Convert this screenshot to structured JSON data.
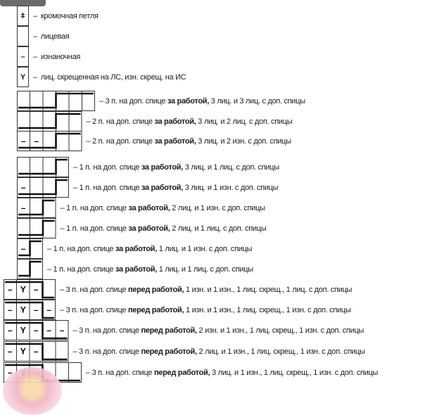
{
  "legend": [
    {
      "symbol": "ǂ",
      "dash": "–",
      "label": "кромочная петля"
    },
    {
      "symbol": "",
      "dash": "–",
      "label": "лицевая"
    },
    {
      "symbol": "–",
      "dash": "–",
      "label": "изнаночная"
    },
    {
      "symbol": "Y",
      "dash": "–",
      "label": "лиц. скрещенная на ЛС, изн. скрещ. на ИС"
    }
  ],
  "cables": [
    {
      "cells": [
        "",
        "",
        "",
        "",
        "",
        ""
      ],
      "held": 3,
      "side": "behind",
      "pre": "– 3 п. на доп. спице",
      "bold": "за работой,",
      "post": "3 лиц. и 3 лиц. с доп. спицы"
    },
    {
      "cells": [
        "",
        "",
        "",
        "",
        ""
      ],
      "held": 2,
      "side": "behind",
      "pre": "– 2 п. на доп. спице",
      "bold": "за работой,",
      "post": "3 лиц. и 2 лиц. с доп. спицы"
    },
    {
      "cells": [
        "–",
        "–",
        "",
        "",
        ""
      ],
      "held": 2,
      "side": "behind",
      "pre": "– 2 п. на доп. спице",
      "bold": "за работой,",
      "post": "3 лиц. и 2 изн. с доп. спицы"
    },
    {
      "cells": [
        "",
        "",
        "",
        ""
      ],
      "held": 1,
      "side": "behind",
      "pre": "– 1 п. на доп. спице",
      "bold": "за работой,",
      "post": "3 лиц. и 1 лиц. с доп. спицы"
    },
    {
      "cells": [
        "–",
        "",
        "",
        ""
      ],
      "held": 1,
      "side": "behind",
      "pre": "– 1 п. на доп. спице",
      "bold": "за работой,",
      "post": "3 лиц. и 1 изн. с доп. спицы"
    },
    {
      "cells": [
        "–",
        "",
        ""
      ],
      "held": 1,
      "side": "behind",
      "pre": "– 1 п. на доп. спице",
      "bold": "за работой,",
      "post": "2 лиц. и 1 изн. с доп. спицы"
    },
    {
      "cells": [
        "",
        "",
        ""
      ],
      "held": 1,
      "side": "behind",
      "pre": "– 1 п. на доп. спице",
      "bold": "за работой,",
      "post": "2 лиц. и 1 лиц. с доп. спицы"
    },
    {
      "cells": [
        "–",
        ""
      ],
      "held": 1,
      "side": "behind",
      "pre": "– 1 п. на доп. спице",
      "bold": "за работой,",
      "post": "1 лиц. и 1 изн. с доп. спицы"
    },
    {
      "cells": [
        "",
        ""
      ],
      "held": 1,
      "side": "behind",
      "pre": "– 1 п. на доп. спице",
      "bold": "за работой,",
      "post": "1 лиц. и 1 лиц. с доп. спицы"
    },
    {
      "cells": [
        "–",
        "Y",
        "–",
        ""
      ],
      "held": 3,
      "side": "front",
      "pre": "– 3 п. на доп. спице",
      "bold": "перед работой,",
      "post": "1 изн. и 1 изн., 1 лиц. скрещ., 1 лиц. с доп. спицы"
    },
    {
      "cells": [
        "–",
        "Y",
        "–",
        "–"
      ],
      "held": 3,
      "side": "front",
      "pre": "– 3 п. на доп. спице",
      "bold": "перед работой,",
      "post": "1 изн. и 1 изн., 1 лиц. скрещ., 1 изн. с доп. спицы"
    },
    {
      "cells": [
        "–",
        "Y",
        "–",
        "–",
        "–"
      ],
      "held": 3,
      "side": "front",
      "pre": "– 3 п. на доп. спице",
      "bold": "перед работой,",
      "post": "2 изн. и 1 изн., 1 лиц. скрещ., 1 изн. с доп. спицы"
    },
    {
      "cells": [
        "–",
        "Y",
        "–",
        "",
        ""
      ],
      "held": 3,
      "side": "front",
      "pre": "– 3 п. на доп. спице",
      "bold": "перед работой,",
      "post": "2 лиц. и 1 изн., 1 лиц. скрещ., 1 изн. с доп. спицы"
    },
    {
      "cells": [
        "–",
        "Y",
        "–",
        "",
        "",
        ""
      ],
      "held": 3,
      "side": "front",
      "pre": "– 3 п. на доп. спице",
      "bold": "перед работой,",
      "post": "3 лиц. и 1 изн., 1 лиц. скрещ., 1 изн. с доп. спицы"
    }
  ]
}
